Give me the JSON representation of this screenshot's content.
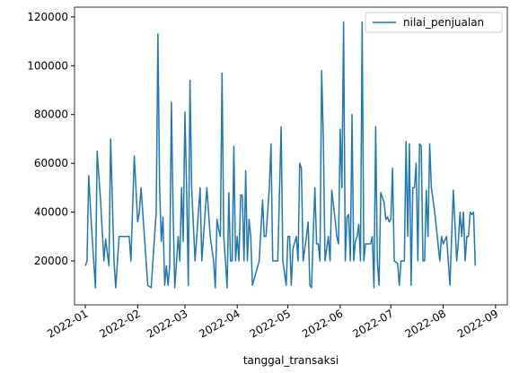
{
  "chart_data": {
    "type": "line",
    "x_label": "tanggal_transaksi",
    "legend": "upper right",
    "series": [
      {
        "name": "nilai_penjualan",
        "color": "#1f77b4",
        "x": [
          0,
          1,
          2,
          4,
          6,
          7,
          9,
          11,
          12,
          14,
          15,
          17,
          18,
          20,
          24,
          26,
          27,
          29,
          31,
          32,
          33,
          35,
          37,
          39,
          41,
          42,
          43,
          44,
          45,
          46,
          47,
          48,
          49,
          50,
          51,
          52,
          53,
          55,
          56,
          57,
          58,
          59,
          60,
          61,
          62,
          63,
          65,
          67,
          68,
          69,
          70,
          72,
          74,
          76,
          77,
          78,
          79,
          80,
          81,
          82,
          83,
          84,
          85,
          86,
          87,
          88,
          89,
          90,
          91,
          92,
          93,
          94,
          95,
          96,
          97,
          98,
          99,
          101,
          103,
          105,
          106,
          107,
          109,
          110,
          111,
          113,
          114,
          116,
          117,
          119,
          120,
          121,
          122,
          123,
          125,
          126,
          127,
          128,
          129,
          131,
          132,
          133,
          134,
          135,
          136,
          137,
          138,
          139,
          140,
          141,
          142,
          144,
          145,
          146,
          147,
          148,
          149,
          150,
          151,
          152,
          153,
          154,
          155,
          156,
          157,
          158,
          159,
          160,
          161,
          162,
          163,
          164,
          165,
          166,
          167,
          169,
          170,
          171,
          172,
          173,
          174,
          175,
          177,
          178,
          179,
          180,
          181,
          182,
          183,
          185,
          186,
          187,
          189,
          190,
          191,
          192,
          193,
          194,
          195,
          196,
          197,
          198,
          199,
          200,
          201,
          202,
          203,
          204,
          205,
          207,
          210,
          211,
          212,
          214,
          216,
          218,
          219,
          220,
          221,
          222,
          223,
          224,
          225,
          226,
          227,
          228,
          229,
          230,
          231
        ],
        "values": [
          18000,
          20000,
          55000,
          30000,
          9000,
          65000,
          45000,
          20000,
          29000,
          18000,
          70000,
          20000,
          9000,
          30000,
          30000,
          30000,
          20000,
          63000,
          36000,
          40000,
          50000,
          30000,
          10000,
          9000,
          30000,
          40000,
          113000,
          50000,
          28000,
          38000,
          10000,
          18000,
          10000,
          18000,
          85000,
          40000,
          9000,
          30000,
          20000,
          50000,
          28000,
          81000,
          50000,
          10000,
          94000,
          50000,
          20000,
          40000,
          50000,
          20000,
          30000,
          50000,
          30000,
          20000,
          9000,
          37000,
          33000,
          30000,
          97000,
          30000,
          20000,
          9000,
          48000,
          20000,
          20000,
          67000,
          20000,
          30000,
          20000,
          47000,
          47000,
          20000,
          57000,
          20000,
          37000,
          30000,
          10000,
          15000,
          20000,
          45000,
          30000,
          30000,
          50000,
          68000,
          20000,
          20000,
          20000,
          75000,
          20000,
          10000,
          30000,
          30000,
          10000,
          25000,
          30000,
          20000,
          60000,
          58000,
          20000,
          30000,
          36000,
          10000,
          9000,
          30000,
          50000,
          27000,
          27000,
          20000,
          98000,
          70000,
          20000,
          30000,
          20000,
          49000,
          43000,
          37000,
          30000,
          27000,
          74000,
          50000,
          118000,
          20000,
          38000,
          39000,
          20000,
          80000,
          20000,
          28000,
          30000,
          35000,
          20000,
          118000,
          20000,
          27000,
          27000,
          27000,
          30000,
          9000,
          75000,
          20000,
          10000,
          48000,
          44000,
          37000,
          38000,
          36000,
          37000,
          58000,
          20000,
          19000,
          10000,
          20000,
          20000,
          69000,
          30000,
          68000,
          10000,
          50000,
          50000,
          60000,
          20000,
          68000,
          67000,
          20000,
          20000,
          49000,
          30000,
          68000,
          50000,
          40000,
          20000,
          30000,
          27000,
          30000,
          10000,
          49000,
          35000,
          20000,
          28000,
          40000,
          30000,
          40000,
          20000,
          30000,
          30000,
          40000,
          39000,
          40000,
          18000
        ]
      }
    ],
    "xlim": [
      -6.4,
      250
    ],
    "xticks": [
      {
        "value": 0,
        "label": "2022-01"
      },
      {
        "value": 31,
        "label": "2022-02"
      },
      {
        "value": 59,
        "label": "2022-03"
      },
      {
        "value": 90,
        "label": "2022-04"
      },
      {
        "value": 120,
        "label": "2022-05"
      },
      {
        "value": 151,
        "label": "2022-06"
      },
      {
        "value": 181,
        "label": "2022-07"
      },
      {
        "value": 212,
        "label": "2022-08"
      },
      {
        "value": 243,
        "label": "2022-09"
      }
    ],
    "ylim": [
      2000,
      124000
    ],
    "yticks": [
      20000,
      40000,
      60000,
      80000,
      100000,
      120000
    ],
    "grid": false
  }
}
